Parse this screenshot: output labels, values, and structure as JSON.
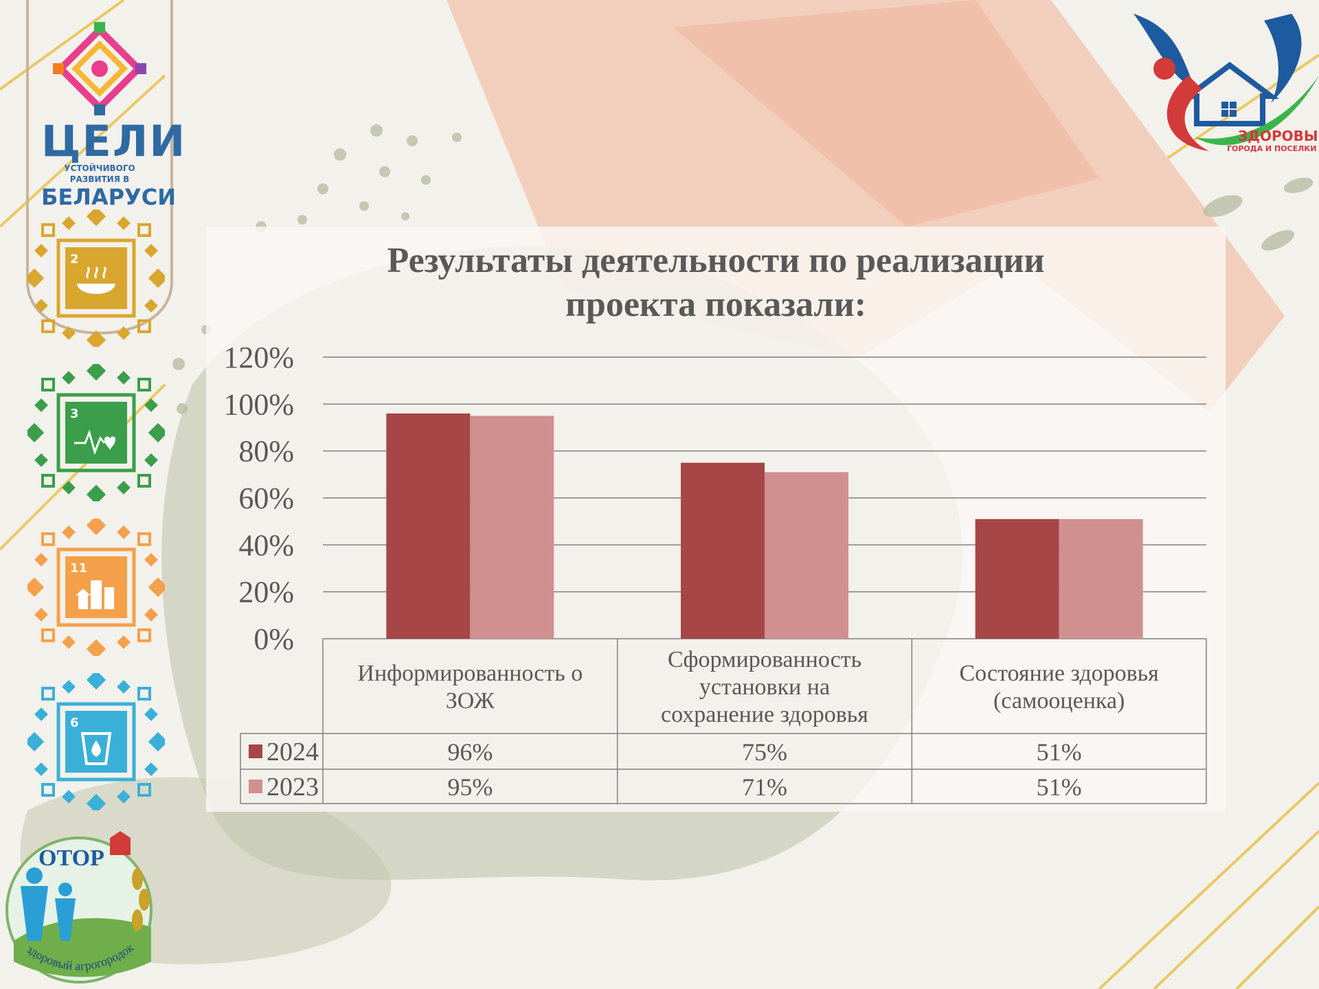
{
  "colors": {
    "series_2024": "#a64646",
    "series_2023": "#d09090",
    "text": "#595959",
    "gridline": "#808080"
  },
  "logos": {
    "sdg_top": {
      "word1": "ЦЕЛИ",
      "word2": "УСТОЙЧИВОГО РАЗВИТИЯ В",
      "word3": "БЕЛАРУСИ"
    },
    "goals": [
      {
        "number": "2",
        "icon": "bowl-icon",
        "color": "#d9a62e"
      },
      {
        "number": "3",
        "icon": "heartbeat-icon",
        "color": "#3b9e4a"
      },
      {
        "number": "11",
        "icon": "city-icon",
        "color": "#f5a04a"
      },
      {
        "number": "6",
        "icon": "water-drop-icon",
        "color": "#3ab0d8"
      }
    ],
    "brand": {
      "line1": "ЗДОРОВЫЕ",
      "line2": "ГОРОДА И ПОСЕЛКИ",
      "icon": "bird-house-icon"
    },
    "otor": {
      "name": "ОТОР",
      "subtitle": "здоровый агрогородок"
    }
  },
  "chart_data": {
    "type": "bar",
    "title": "Результаты деятельности по реализации проекта показали:",
    "title_lines": [
      "Результаты деятельности по реализации",
      "проекта показали:"
    ],
    "categories": [
      "Информированность о ЗОЖ",
      "Сформированность установки на сохранение здоровья",
      "Состояние здоровья (самооценка)"
    ],
    "category_lines": [
      [
        "Информированность о",
        "ЗОЖ"
      ],
      [
        "Сформированность",
        "установки на",
        "сохранение здоровья"
      ],
      [
        "Состояние здоровья",
        "(самооценка)"
      ]
    ],
    "series": [
      {
        "name": "2024",
        "values": [
          96,
          75,
          51
        ],
        "labels": [
          "96%",
          "75%",
          "51%"
        ]
      },
      {
        "name": "2023",
        "values": [
          95,
          71,
          51
        ],
        "labels": [
          "95%",
          "71%",
          "51%"
        ]
      }
    ],
    "ylim": [
      0,
      120
    ],
    "yticks": [
      0,
      20,
      40,
      60,
      80,
      100,
      120
    ],
    "ytick_labels": [
      "0%",
      "20%",
      "40%",
      "60%",
      "80%",
      "100%",
      "120%"
    ],
    "grid": true,
    "legend": "data-table",
    "xlabel": "",
    "ylabel": ""
  }
}
